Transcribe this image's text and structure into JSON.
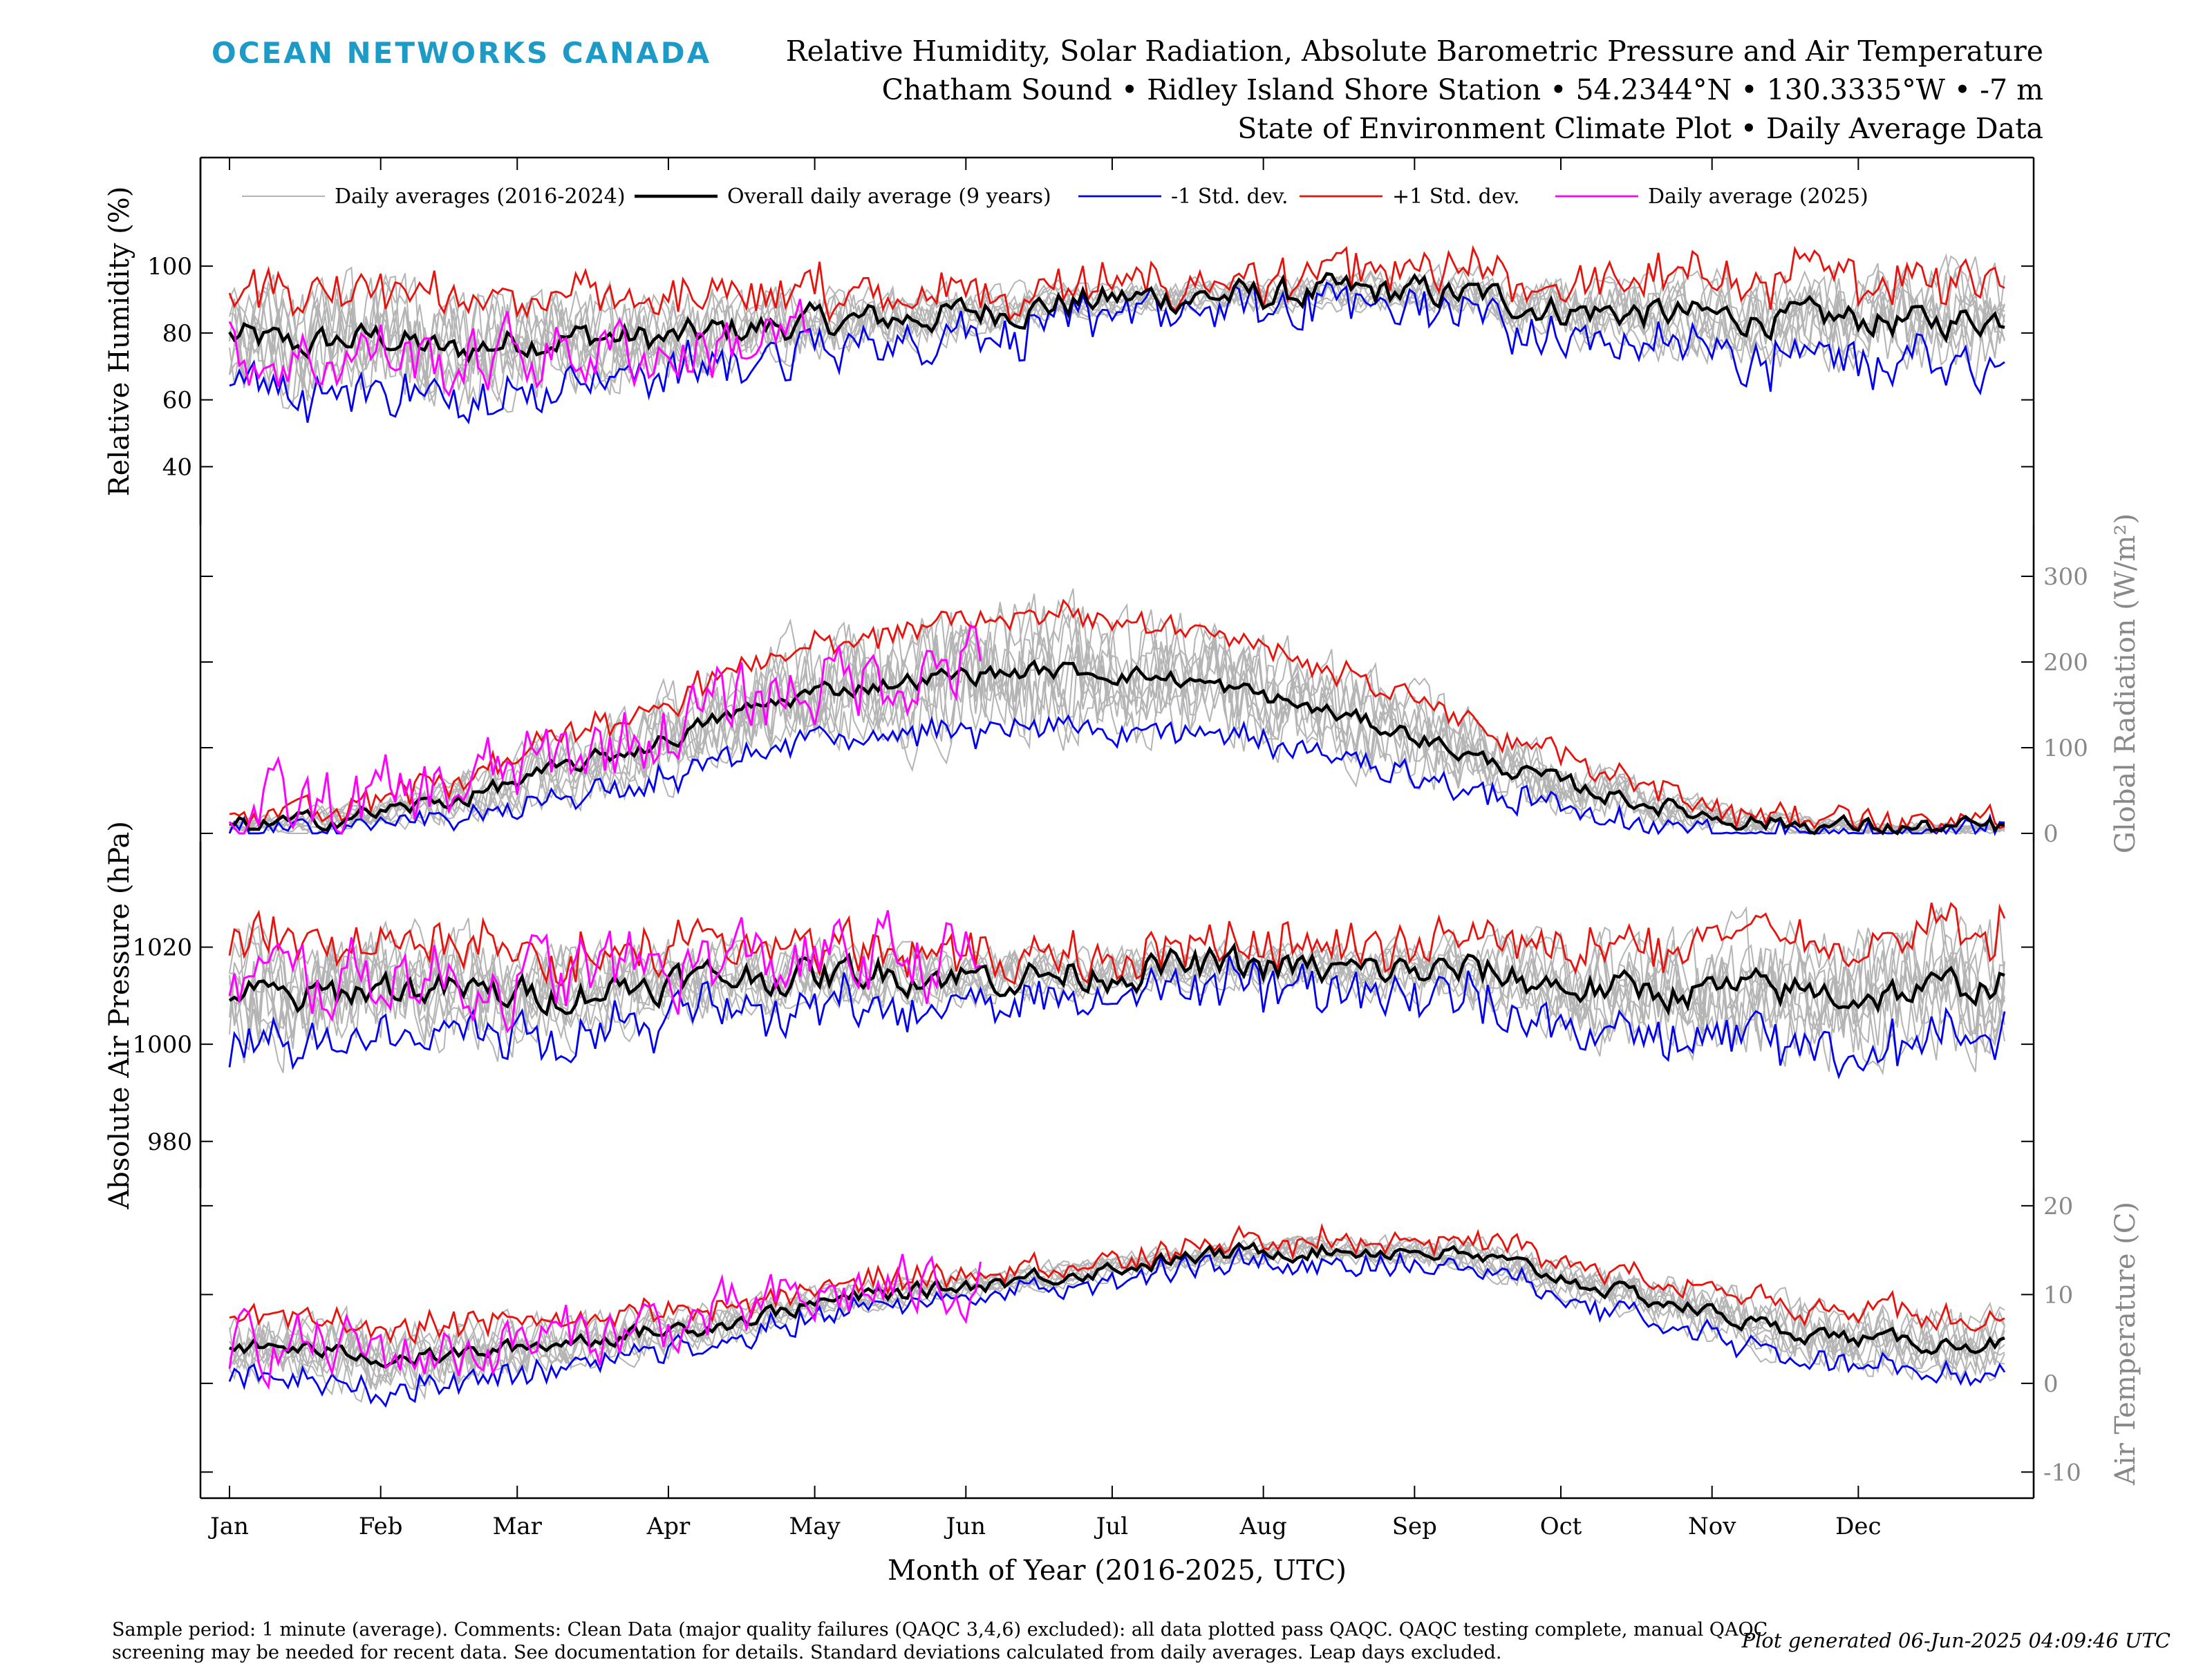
{
  "header": {
    "brand": "OCEAN NETWORKS CANADA",
    "title_line1": "Relative Humidity, Solar Radiation, Absolute Barometric Pressure and Air Temperature",
    "title_line2": "Chatham Sound • Ridley Island Shore Station • 54.2344°N • 130.3335°W • -7 m",
    "title_line3": "State of Environment Climate Plot • Daily Average Data"
  },
  "footer": {
    "note": "Sample period: 1 minute (average). Comments: Clean Data (major quality failures (QAQC 3,4,6) excluded): all data plotted pass QAQC. QAQC testing complete, manual QAQC screening may be needed for recent data. See documentation for details. Standard deviations calculated from daily averages. Leap days excluded.",
    "generated": "Plot generated 06-Jun-2025 04:09:46 UTC"
  },
  "colors": {
    "brand": "#1d9ac6",
    "history": "#b4b4b4",
    "mean": "#000000",
    "minus_sd": "#0000ee",
    "plus_sd": "#e8120c",
    "current": "#ff00ff"
  },
  "chart_data": {
    "type": "line",
    "xlabel": "Month of Year (2016-2025, UTC)",
    "x_ticks": [
      "Jan",
      "Feb",
      "Mar",
      "Apr",
      "May",
      "Jun",
      "Jul",
      "Aug",
      "Sep",
      "Oct",
      "Nov",
      "Dec"
    ],
    "xlim": [
      1,
      365
    ],
    "legend": [
      {
        "key": "history",
        "label": "Daily averages (2016-2024)"
      },
      {
        "key": "mean",
        "label": "Overall daily average (9 years)"
      },
      {
        "key": "minus_sd",
        "label": "-1 Std. dev."
      },
      {
        "key": "plus_sd",
        "label": "+1 Std. dev."
      },
      {
        "key": "current",
        "label": "Daily average (2025)"
      }
    ],
    "legend_placement": "top",
    "panels": [
      {
        "id": "rh",
        "ylabel": "Relative Humidity (%)",
        "axis_side": "left",
        "ylim": [
          25,
          118
        ],
        "yticks": [
          40,
          60,
          80,
          100
        ],
        "mean": [
          [
            1,
            79
          ],
          [
            15,
            76
          ],
          [
            32,
            79
          ],
          [
            46,
            74
          ],
          [
            60,
            78
          ],
          [
            74,
            79
          ],
          [
            91,
            78
          ],
          [
            105,
            81
          ],
          [
            121,
            83
          ],
          [
            135,
            84
          ],
          [
            152,
            86
          ],
          [
            166,
            88
          ],
          [
            182,
            90
          ],
          [
            196,
            91
          ],
          [
            213,
            91
          ],
          [
            227,
            92
          ],
          [
            244,
            92
          ],
          [
            258,
            91
          ],
          [
            274,
            87
          ],
          [
            288,
            86
          ],
          [
            305,
            85
          ],
          [
            319,
            84
          ],
          [
            335,
            84
          ],
          [
            349,
            83
          ],
          [
            365,
            85
          ]
        ],
        "sd": [
          [
            1,
            14
          ],
          [
            32,
            16
          ],
          [
            60,
            14
          ],
          [
            91,
            11
          ],
          [
            121,
            9
          ],
          [
            152,
            6
          ],
          [
            182,
            4
          ],
          [
            213,
            4
          ],
          [
            244,
            5
          ],
          [
            274,
            8
          ],
          [
            305,
            11
          ],
          [
            335,
            12
          ],
          [
            365,
            14
          ]
        ],
        "noise": [
          4,
          2
        ],
        "current_days": [
          1,
          120
        ],
        "current_offset": -4,
        "current_noise": 9
      },
      {
        "id": "rad",
        "ylabel": "Global Radiation (W/m²)",
        "axis_side": "right",
        "ylim": [
          0,
          350
        ],
        "yticks": [
          0,
          100,
          200,
          300
        ],
        "mean": [
          [
            1,
            8
          ],
          [
            15,
            12
          ],
          [
            32,
            25
          ],
          [
            46,
            38
          ],
          [
            60,
            60
          ],
          [
            74,
            82
          ],
          [
            91,
            110
          ],
          [
            105,
            140
          ],
          [
            121,
            165
          ],
          [
            135,
            175
          ],
          [
            152,
            185
          ],
          [
            166,
            190
          ],
          [
            182,
            188
          ],
          [
            196,
            180
          ],
          [
            213,
            160
          ],
          [
            227,
            140
          ],
          [
            244,
            115
          ],
          [
            258,
            85
          ],
          [
            274,
            58
          ],
          [
            288,
            40
          ],
          [
            305,
            20
          ],
          [
            319,
            12
          ],
          [
            335,
            8
          ],
          [
            349,
            6
          ],
          [
            365,
            7
          ]
        ],
        "sd": [
          [
            1,
            6
          ],
          [
            32,
            15
          ],
          [
            60,
            30
          ],
          [
            91,
            45
          ],
          [
            121,
            55
          ],
          [
            152,
            65
          ],
          [
            182,
            65
          ],
          [
            213,
            55
          ],
          [
            244,
            45
          ],
          [
            274,
            30
          ],
          [
            305,
            15
          ],
          [
            335,
            7
          ],
          [
            365,
            6
          ]
        ],
        "noise": [
          9,
          4
        ],
        "current_days": [
          1,
          155
        ],
        "current_offset": 12,
        "current_noise": 40
      },
      {
        "id": "pres",
        "ylabel": "Absolute Air Pressure (hPa)",
        "axis_side": "left",
        "ylim": [
          972,
          1040
        ],
        "yticks": [
          980,
          1000,
          1020
        ],
        "mean": [
          [
            1,
            1011
          ],
          [
            15,
            1009
          ],
          [
            32,
            1012
          ],
          [
            46,
            1011
          ],
          [
            60,
            1010
          ],
          [
            74,
            1011
          ],
          [
            91,
            1013
          ],
          [
            105,
            1014
          ],
          [
            121,
            1014
          ],
          [
            135,
            1015
          ],
          [
            152,
            1014
          ],
          [
            166,
            1014
          ],
          [
            182,
            1015
          ],
          [
            196,
            1016
          ],
          [
            213,
            1016
          ],
          [
            227,
            1015
          ],
          [
            244,
            1015
          ],
          [
            258,
            1015
          ],
          [
            274,
            1012
          ],
          [
            288,
            1011
          ],
          [
            305,
            1011
          ],
          [
            319,
            1011
          ],
          [
            335,
            1010
          ],
          [
            349,
            1011
          ],
          [
            365,
            1013
          ]
        ],
        "sd": [
          [
            1,
            11
          ],
          [
            32,
            10
          ],
          [
            60,
            9
          ],
          [
            91,
            7
          ],
          [
            121,
            6
          ],
          [
            152,
            5
          ],
          [
            182,
            4
          ],
          [
            213,
            4
          ],
          [
            244,
            5
          ],
          [
            274,
            8
          ],
          [
            305,
            10
          ],
          [
            335,
            11
          ],
          [
            365,
            11
          ]
        ],
        "noise": [
          3,
          1
        ],
        "current_days": [
          1,
          155
        ],
        "current_offset": 3,
        "current_noise": 7
      },
      {
        "id": "temp",
        "ylabel": "Air Temperature (C)",
        "axis_side": "right",
        "ylim": [
          -12,
          21
        ],
        "yticks": [
          -10,
          0,
          10,
          20
        ],
        "mean": [
          [
            1,
            4
          ],
          [
            15,
            4
          ],
          [
            32,
            3
          ],
          [
            46,
            3
          ],
          [
            60,
            4
          ],
          [
            74,
            5
          ],
          [
            91,
            6
          ],
          [
            105,
            7
          ],
          [
            121,
            9
          ],
          [
            135,
            10
          ],
          [
            152,
            11
          ],
          [
            166,
            12
          ],
          [
            182,
            13
          ],
          [
            196,
            14
          ],
          [
            213,
            15
          ],
          [
            227,
            15
          ],
          [
            244,
            15
          ],
          [
            258,
            14
          ],
          [
            274,
            12
          ],
          [
            288,
            10
          ],
          [
            305,
            8
          ],
          [
            319,
            6
          ],
          [
            335,
            5
          ],
          [
            349,
            4.5
          ],
          [
            365,
            4.5
          ]
        ],
        "sd": [
          [
            1,
            3
          ],
          [
            32,
            3.5
          ],
          [
            60,
            3
          ],
          [
            91,
            2.2
          ],
          [
            121,
            1.6
          ],
          [
            152,
            1.2
          ],
          [
            182,
            1.2
          ],
          [
            213,
            1.2
          ],
          [
            244,
            1.4
          ],
          [
            274,
            2
          ],
          [
            305,
            2.6
          ],
          [
            335,
            3.2
          ],
          [
            365,
            3
          ]
        ],
        "noise": [
          0.8,
          0.4
        ],
        "current_days": [
          1,
          155
        ],
        "current_offset": 0.5,
        "current_noise": 3
      }
    ]
  }
}
